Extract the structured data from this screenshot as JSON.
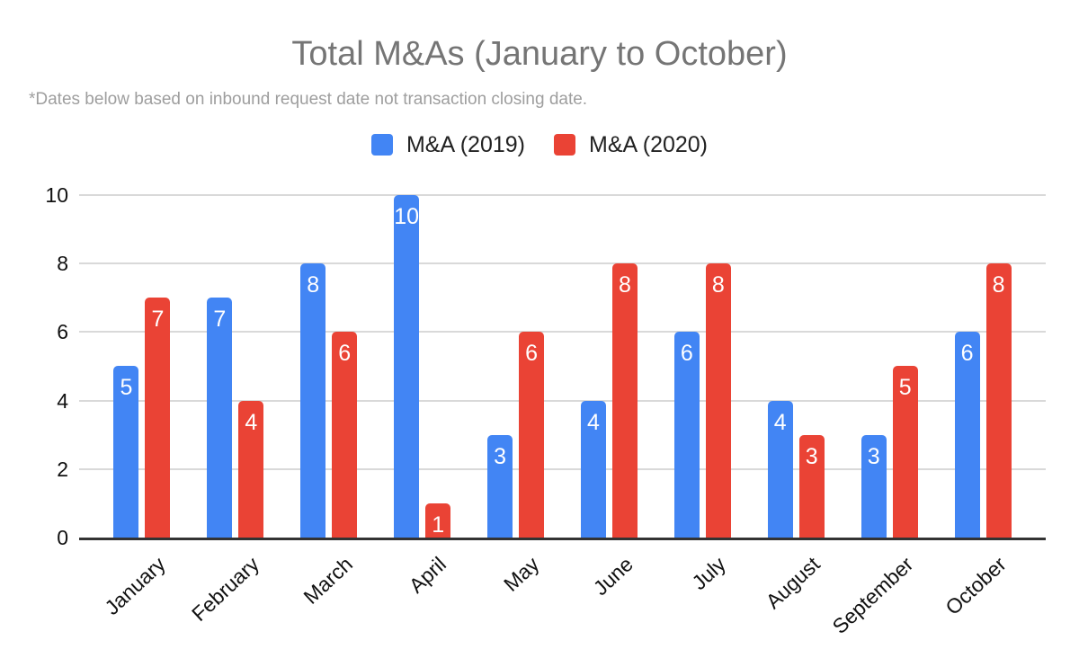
{
  "chart_data": {
    "type": "bar",
    "title": "Total M&As (January to October)",
    "subtitle": "*Dates below based on inbound request date not transaction closing date.",
    "categories": [
      "January",
      "February",
      "March",
      "April",
      "May",
      "June",
      "July",
      "August",
      "September",
      "October"
    ],
    "series": [
      {
        "name": "M&A (2019)",
        "year": "2019",
        "color": "#4285f4",
        "values": [
          5,
          7,
          8,
          10,
          3,
          4,
          6,
          4,
          3,
          6
        ]
      },
      {
        "name": "M&A (2020)",
        "year": "2020",
        "color": "#ea4335",
        "values": [
          7,
          4,
          6,
          1,
          6,
          8,
          8,
          3,
          5,
          8
        ]
      }
    ],
    "ylim": [
      0,
      10
    ],
    "yticks": [
      0,
      2,
      4,
      6,
      8,
      10
    ],
    "grid": true,
    "legend_position": "top-center",
    "value_labels_inside_bars": true,
    "value_label_color": "#ffffff",
    "axis_text_color": "#111111",
    "gridline_color": "#d9d9d9",
    "baseline_color": "#333333",
    "title_color": "#757575",
    "subtitle_color": "#9e9e9e"
  }
}
